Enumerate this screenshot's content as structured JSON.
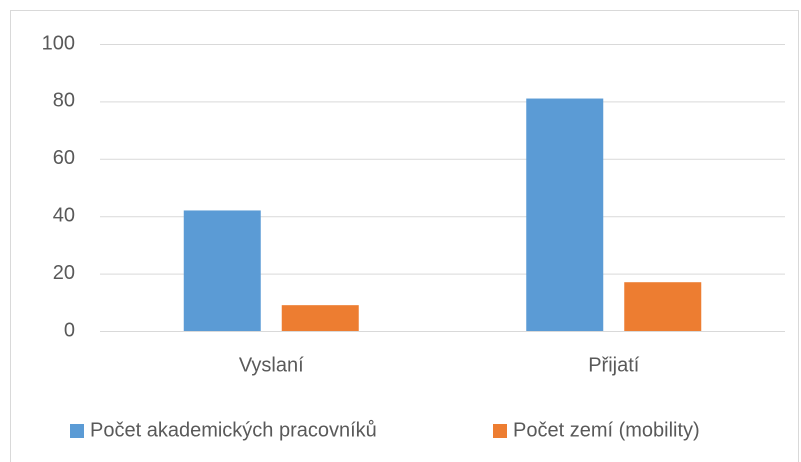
{
  "chart_data": {
    "type": "bar",
    "categories": [
      "Vyslaní",
      "Přijatí"
    ],
    "series": [
      {
        "name": "Počet akademických pracovníků",
        "color": "#5b9bd5",
        "values": [
          42,
          81
        ]
      },
      {
        "name": "Počet zemí (mobility)",
        "color": "#ed7d31",
        "values": [
          9,
          17
        ]
      }
    ],
    "ylim": [
      0,
      100
    ],
    "yticks": [
      0,
      20,
      40,
      60,
      80,
      100
    ],
    "grid": true,
    "legend": "bottom"
  }
}
